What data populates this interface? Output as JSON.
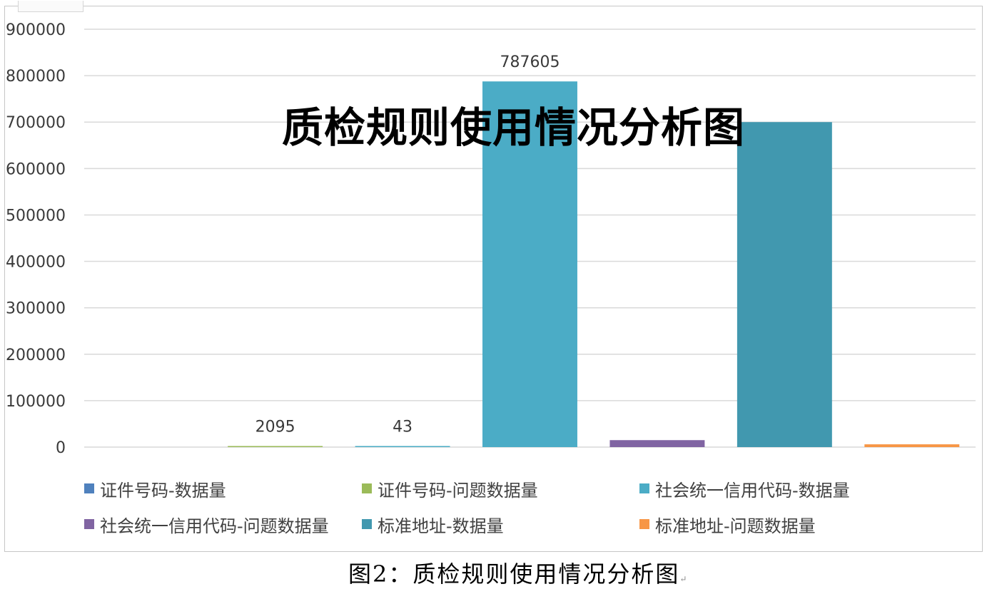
{
  "chart_data": {
    "type": "bar",
    "title": "质检规则使用情况分析图",
    "ylim": [
      0,
      900000
    ],
    "yticks": [
      "900000",
      "800000",
      "700000",
      "600000",
      "500000",
      "400000",
      "300000",
      "200000",
      "100000",
      "0"
    ],
    "grid": true,
    "legend_position": "bottom",
    "series": [
      {
        "name": "证件号码-数据量",
        "value": 0,
        "label": "",
        "color": "#4f81bd"
      },
      {
        "name": "证件号码-问题数据量",
        "value": 2095,
        "label": "2095",
        "color": "#9bbb59"
      },
      {
        "name": "社会统一信用代码-数据量",
        "value": 43,
        "label": "43",
        "color": "#4bacc6"
      },
      {
        "name": "社会统一信用代码-问题数据量",
        "value": 787605,
        "label": "787605",
        "color": "#4bacc6"
      },
      {
        "name": "标准地址-数据量",
        "value": 15000,
        "label": "",
        "color": "#8064a2"
      },
      {
        "name": "标准地址-问题数据量",
        "value": 700000,
        "label": "",
        "color": "#4198af"
      },
      {
        "name": "",
        "value": 6000,
        "label": "",
        "color": "#f79646"
      }
    ]
  },
  "legend": [
    {
      "label": "证件号码-数据量",
      "color": "#4f81bd"
    },
    {
      "label": "证件号码-问题数据量",
      "color": "#9bbb59"
    },
    {
      "label": "社会统一信用代码-数据量",
      "color": "#4bacc6"
    },
    {
      "label": "社会统一信用代码-问题数据量",
      "color": "#8064a2"
    },
    {
      "label": "标准地址-数据量",
      "color": "#4198af"
    },
    {
      "label": "标准地址-问题数据量",
      "color": "#f79646"
    }
  ],
  "overlay_title": "质检规则使用情况分析图",
  "caption": "图2：质检规则使用情况分析图",
  "caption_mark": "↵"
}
